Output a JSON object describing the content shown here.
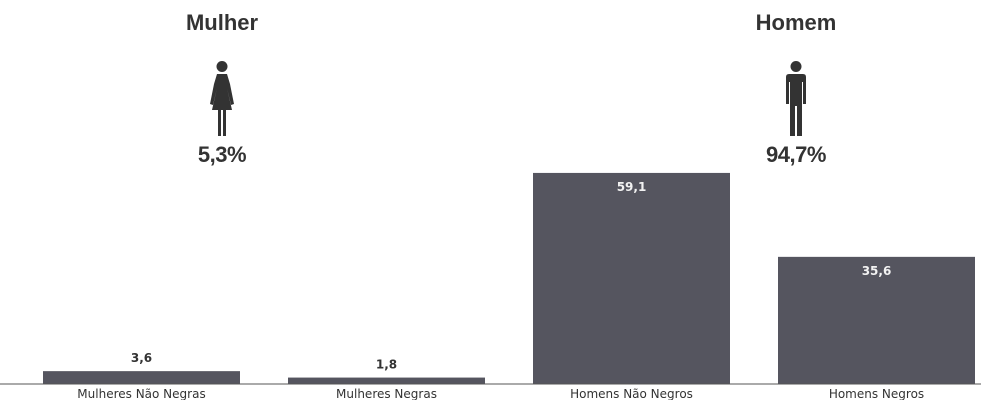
{
  "header": {
    "woman": {
      "title": "Mulher",
      "percent": "5,3%",
      "icon": "woman-icon"
    },
    "man": {
      "title": "Homem",
      "percent": "94,7%",
      "icon": "man-icon"
    }
  },
  "colors": {
    "bar": "#55555f",
    "text": "#333333",
    "bar_label_inside": "#f2f2f2",
    "bar_label_outside": "#333333"
  },
  "chart_data": {
    "type": "bar",
    "categories": [
      "Mulheres Não Negras",
      "Mulheres Negras",
      "Homens Não Negros",
      "Homens Negros"
    ],
    "values": [
      3.6,
      1.8,
      59.1,
      35.6
    ],
    "value_labels": [
      "3,6",
      "1,8",
      "59,1",
      "35,6"
    ],
    "title": "",
    "xlabel": "",
    "ylabel": "",
    "ylim": [
      0,
      70
    ],
    "grid": false,
    "legend": "none"
  }
}
